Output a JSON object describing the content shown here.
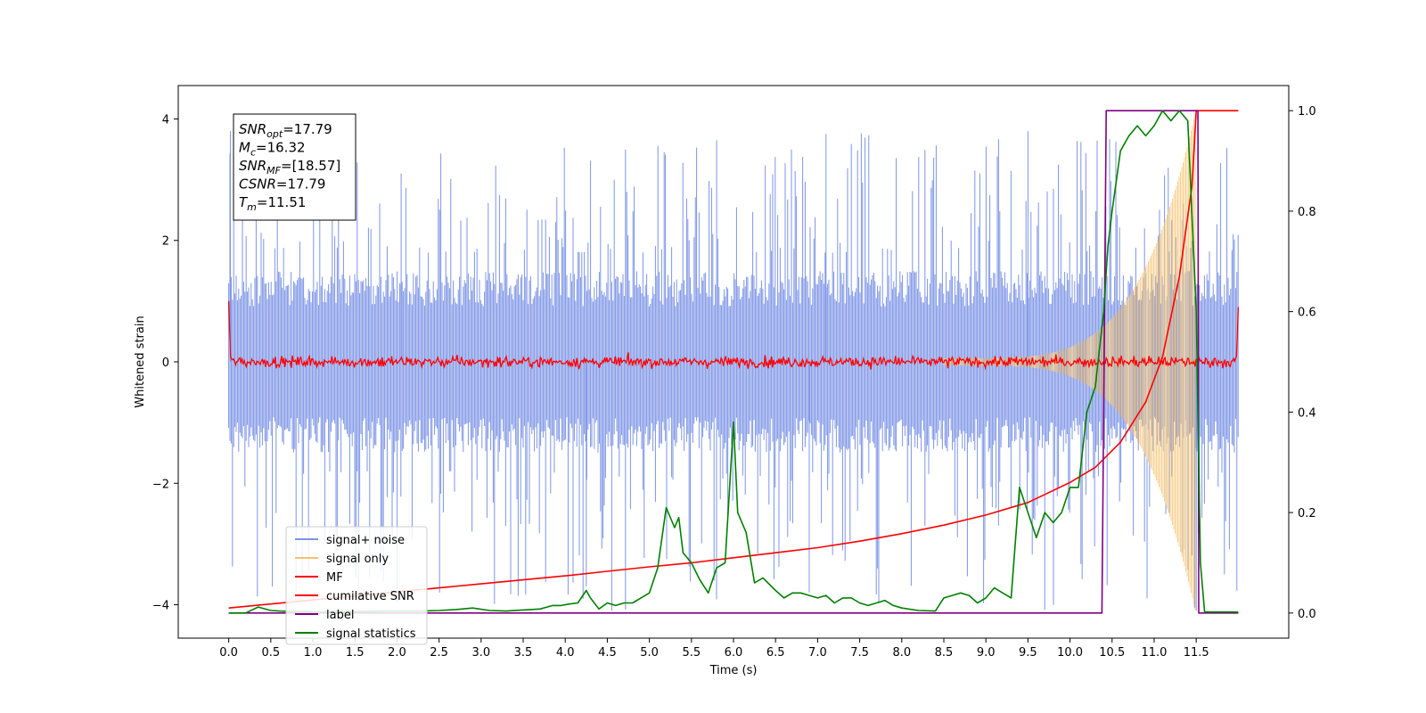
{
  "chart_data": {
    "type": "line",
    "xlabel": "Time (s)",
    "ylabel": "Whitened strain",
    "xlim": [
      -0.6,
      12.6
    ],
    "ylim": [
      -4.55,
      4.55
    ],
    "y2lim": [
      -0.05,
      1.05
    ],
    "x_ticks": [
      "0.0",
      "0.5",
      "1.0",
      "1.5",
      "2.0",
      "2.5",
      "3.0",
      "3.5",
      "4.0",
      "4.5",
      "5.0",
      "5.5",
      "6.0",
      "6.5",
      "7.0",
      "7.5",
      "8.0",
      "8.5",
      "9.0",
      "9.5",
      "10.0",
      "10.5",
      "11.0",
      "11.5"
    ],
    "x_tick_values": [
      0,
      0.5,
      1,
      1.5,
      2,
      2.5,
      3,
      3.5,
      4,
      4.5,
      5,
      5.5,
      6,
      6.5,
      7,
      7.5,
      8,
      8.5,
      9,
      9.5,
      10,
      10.5,
      11,
      11.5
    ],
    "y_ticks": [
      "−4",
      "−2",
      "0",
      "2",
      "4"
    ],
    "y_tick_values": [
      -4,
      -2,
      0,
      2,
      4
    ],
    "y2_ticks": [
      "0.0",
      "0.2",
      "0.4",
      "0.6",
      "0.8",
      "1.0"
    ],
    "y2_tick_values": [
      0,
      0.2,
      0.4,
      0.6,
      0.8,
      1.0
    ],
    "grid": false,
    "legend_location": "lower-left",
    "stats_box": [
      {
        "base": "SNR",
        "sub": "opt",
        "value": "=17.79"
      },
      {
        "base": "M",
        "sub": "c",
        "value": "=16.32"
      },
      {
        "base": "SNR",
        "sub": "MF",
        "value": "=[18.57]"
      },
      {
        "base": "CSNR",
        "sub": "",
        "value": "=17.79"
      },
      {
        "base": "T",
        "sub": "m",
        "value": "=11.51"
      }
    ],
    "series": [
      {
        "name": "signal+ noise",
        "color": "#7b93e6",
        "axis": "left",
        "x_range": [
          0,
          12
        ],
        "noise_envelope": {
          "typical": [
            -1.3,
            1.3
          ],
          "extreme": [
            -4.1,
            3.8
          ]
        }
      },
      {
        "name": "signal only",
        "color": "#f5c26b",
        "axis": "left",
        "chirp": {
          "start": 8.5,
          "merger": 11.5,
          "peak_amplitude": 4.1
        }
      },
      {
        "name": "MF",
        "color": "#ff0000",
        "axis": "left",
        "level": 0.0,
        "jitter": 0.08,
        "edge_values": [
          1.0,
          0.9
        ]
      },
      {
        "name": "cumilative SNR",
        "color": "#ff0000",
        "axis": "right",
        "x": [
          0,
          0.5,
          1,
          1.5,
          2,
          2.5,
          3,
          3.5,
          4,
          4.5,
          5,
          5.5,
          6,
          6.5,
          7,
          7.5,
          8,
          8.5,
          9,
          9.5,
          10,
          10.3,
          10.6,
          10.9,
          11.1,
          11.3,
          11.45,
          11.5,
          12
        ],
        "y": [
          0.01,
          0.018,
          0.026,
          0.034,
          0.042,
          0.05,
          0.058,
          0.066,
          0.074,
          0.083,
          0.092,
          0.1,
          0.11,
          0.12,
          0.13,
          0.143,
          0.158,
          0.175,
          0.195,
          0.22,
          0.26,
          0.29,
          0.34,
          0.42,
          0.51,
          0.67,
          0.85,
          1.0,
          1.0
        ]
      },
      {
        "name": "label",
        "color": "#800080",
        "axis": "right",
        "x": [
          0,
          10.38,
          10.43,
          11.52,
          11.53,
          12
        ],
        "y": [
          0,
          0,
          1,
          1,
          0,
          0
        ]
      },
      {
        "name": "signal statistics",
        "color": "#008000",
        "axis": "right",
        "x": [
          0,
          0.2,
          0.35,
          0.5,
          0.7,
          0.9,
          1.1,
          1.3,
          1.5,
          1.7,
          1.9,
          2.1,
          2.3,
          2.5,
          2.7,
          2.9,
          3.1,
          3.3,
          3.5,
          3.7,
          3.85,
          3.95,
          4.05,
          4.15,
          4.25,
          4.3,
          4.4,
          4.5,
          4.6,
          4.7,
          4.8,
          4.9,
          5.0,
          5.1,
          5.2,
          5.3,
          5.35,
          5.4,
          5.5,
          5.6,
          5.7,
          5.8,
          5.9,
          6.0,
          6.05,
          6.15,
          6.25,
          6.35,
          6.5,
          6.6,
          6.7,
          6.8,
          6.9,
          7.0,
          7.1,
          7.2,
          7.3,
          7.4,
          7.5,
          7.6,
          7.7,
          7.8,
          7.9,
          8.0,
          8.2,
          8.4,
          8.5,
          8.6,
          8.7,
          8.8,
          8.9,
          9.0,
          9.1,
          9.2,
          9.3,
          9.4,
          9.5,
          9.6,
          9.7,
          9.8,
          9.9,
          10.0,
          10.1,
          10.2,
          10.3,
          10.4,
          10.45,
          10.5,
          10.6,
          10.7,
          10.8,
          10.9,
          11.0,
          11.1,
          11.2,
          11.3,
          11.4,
          11.5,
          11.55,
          11.6,
          12
        ],
        "y": [
          0,
          0,
          0.012,
          0.005,
          0.003,
          0.003,
          0.002,
          0.003,
          0.003,
          0.003,
          0.004,
          0.004,
          0.004,
          0.005,
          0.007,
          0.01,
          0.005,
          0.004,
          0.006,
          0.008,
          0.015,
          0.015,
          0.018,
          0.02,
          0.045,
          0.03,
          0.008,
          0.02,
          0.015,
          0.02,
          0.02,
          0.03,
          0.04,
          0.09,
          0.21,
          0.17,
          0.19,
          0.12,
          0.1,
          0.066,
          0.04,
          0.09,
          0.1,
          0.38,
          0.2,
          0.16,
          0.06,
          0.07,
          0.045,
          0.03,
          0.04,
          0.04,
          0.035,
          0.03,
          0.035,
          0.02,
          0.03,
          0.03,
          0.02,
          0.015,
          0.02,
          0.025,
          0.015,
          0.01,
          0.005,
          0.004,
          0.03,
          0.035,
          0.04,
          0.035,
          0.02,
          0.03,
          0.05,
          0.04,
          0.03,
          0.25,
          0.2,
          0.15,
          0.2,
          0.18,
          0.2,
          0.25,
          0.25,
          0.4,
          0.45,
          0.6,
          0.73,
          0.8,
          0.92,
          0.95,
          0.97,
          0.95,
          0.97,
          1.0,
          0.98,
          1.0,
          0.98,
          0.6,
          0.1,
          0.002,
          0.002
        ]
      }
    ]
  }
}
